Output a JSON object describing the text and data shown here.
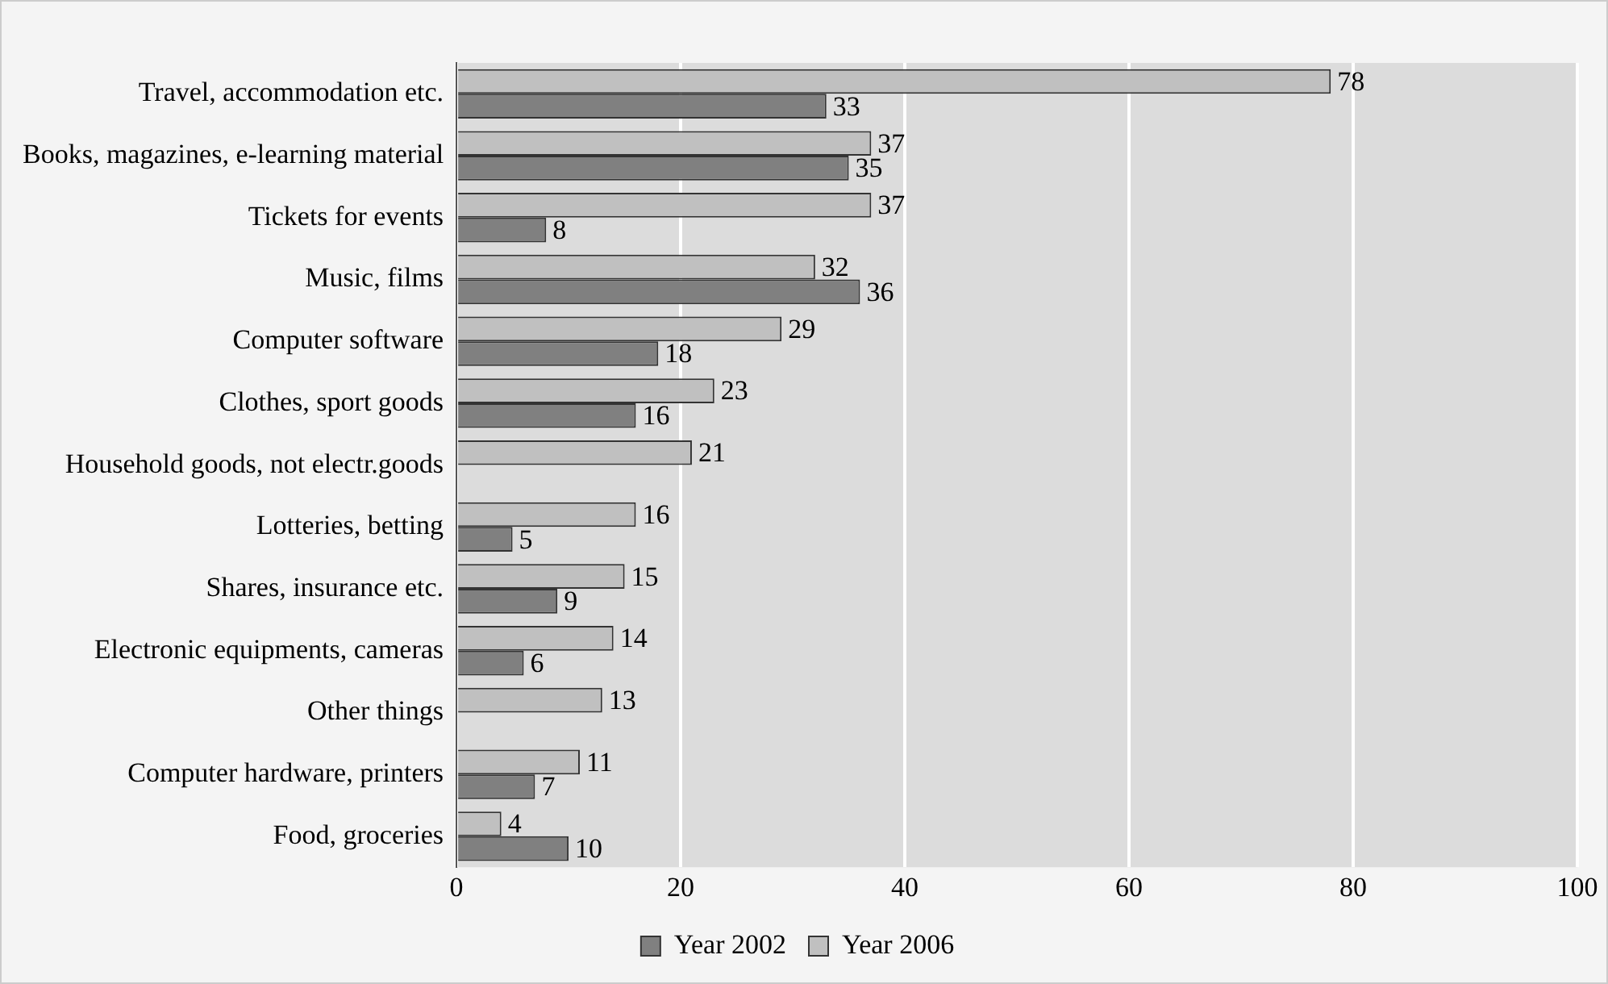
{
  "chart_data": {
    "type": "bar",
    "orientation": "horizontal",
    "categories": [
      "Travel, accommodation etc.",
      "Books, magazines, e-learning material",
      "Tickets for events",
      "Music, films",
      "Computer software",
      "Clothes, sport goods",
      "Household goods, not electr.goods",
      "Lotteries, betting",
      "Shares, insurance etc.",
      "Electronic equipments, cameras",
      "Other things",
      "Computer hardware, printers",
      "Food, groceries"
    ],
    "series": [
      {
        "name": "Year 2006",
        "color": "#c0c0c0",
        "values": [
          78,
          37,
          37,
          32,
          29,
          23,
          21,
          16,
          15,
          14,
          13,
          11,
          4
        ]
      },
      {
        "name": "Year 2002",
        "color": "#808080",
        "values": [
          33,
          35,
          8,
          36,
          18,
          16,
          null,
          5,
          9,
          6,
          null,
          7,
          10
        ]
      }
    ],
    "xlim": [
      0,
      100
    ],
    "xticks": [
      0,
      20,
      40,
      60,
      80,
      100
    ],
    "grid": "x",
    "legend": "bottom",
    "data_labels": true
  }
}
